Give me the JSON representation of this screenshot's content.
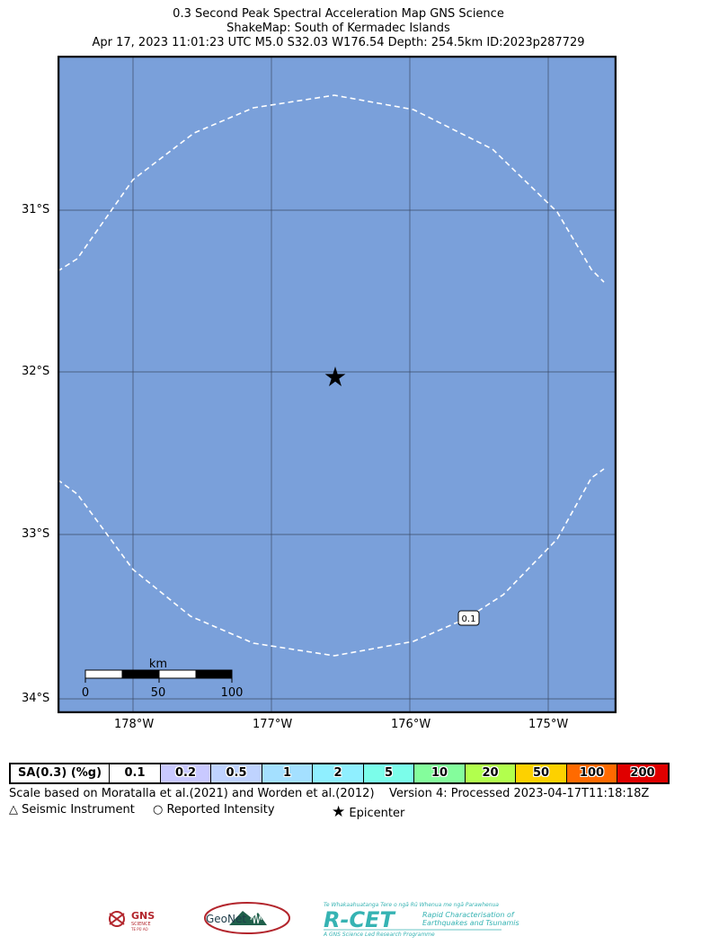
{
  "title": {
    "line1": "0.3 Second Peak Spectral Acceleration Map GNS Science",
    "line2": "ShakeMap: South of Kermadec Islands",
    "line3": "Apr 17, 2023 11:01:23 UTC M5.0 S32.03 W176.54 Depth: 254.5km ID:2023p287729"
  },
  "map": {
    "ocean_color": "#7aa0da",
    "grid_color": "#3b4a66",
    "lat_labels": [
      "31°S",
      "32°S",
      "33°S",
      "34°S"
    ],
    "lon_labels": [
      "178°W",
      "177°W",
      "176°W",
      "175°W"
    ],
    "epicenter": {
      "lat": -32.03,
      "lon": -176.54,
      "icon": "star-icon"
    },
    "contour_label": "0.1",
    "scale_bar": {
      "title": "km",
      "ticks": [
        "0",
        "50",
        "100"
      ]
    }
  },
  "legend": {
    "header": "SA(0.3) (%g)",
    "cells": [
      {
        "label": "0.1",
        "color": "#ffffff"
      },
      {
        "label": "0.2",
        "color": "#c9c9ff"
      },
      {
        "label": "0.5",
        "color": "#bfd3ff"
      },
      {
        "label": "1",
        "color": "#a4e0ff"
      },
      {
        "label": "2",
        "color": "#8fefff"
      },
      {
        "label": "5",
        "color": "#7bfdea"
      },
      {
        "label": "10",
        "color": "#84fd9c"
      },
      {
        "label": "20",
        "color": "#b2ff4d"
      },
      {
        "label": "50",
        "color": "#fdd100"
      },
      {
        "label": "100",
        "color": "#ff6a00"
      },
      {
        "label": "200",
        "color": "#e00000"
      }
    ]
  },
  "footnote": {
    "scale": "Scale based on Moratalla et al.(2021) and Worden et al.(2012)",
    "version": "Version 4: Processed 2023-04-17T11:18:18Z"
  },
  "symbols": {
    "instrument": "Seismic Instrument",
    "intensity": "Reported Intensity",
    "epicenter": "Epicenter"
  },
  "logos": {
    "gns": {
      "text": "GNS",
      "sub": "SCIENCE",
      "sub2": "TE PŪ AO"
    },
    "geonet": {
      "text": "GeoNet"
    },
    "rcet": {
      "tagline": "Te Whakaahuatanga Tere o ngā Rū Whenua me ngā Parawhenua",
      "name": "R-CET",
      "desc1": "Rapid Characterisation of",
      "desc2": "Earthquakes and Tsunamis",
      "footer": "A GNS Science Led Research Programme"
    }
  }
}
